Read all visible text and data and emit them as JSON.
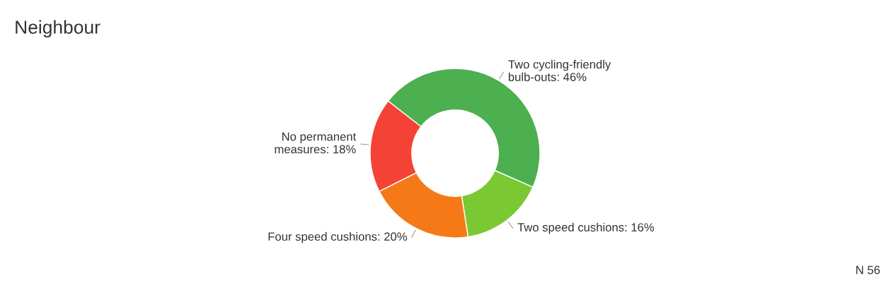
{
  "chart_data": {
    "type": "donut",
    "title": "Neighbour",
    "categories": [
      "Two cycling-friendly\nbulb-outs",
      "Two speed cushions",
      "Four speed cushions",
      "No permanent\nmeasures"
    ],
    "values": [
      46,
      16,
      20,
      18
    ],
    "value_labels": [
      "46%",
      "16%",
      "20%",
      "18%"
    ],
    "colors": [
      "#4caf50",
      "#7bc932",
      "#f57a17",
      "#f44336"
    ],
    "annotations": [
      "N 56"
    ],
    "legend": false
  }
}
